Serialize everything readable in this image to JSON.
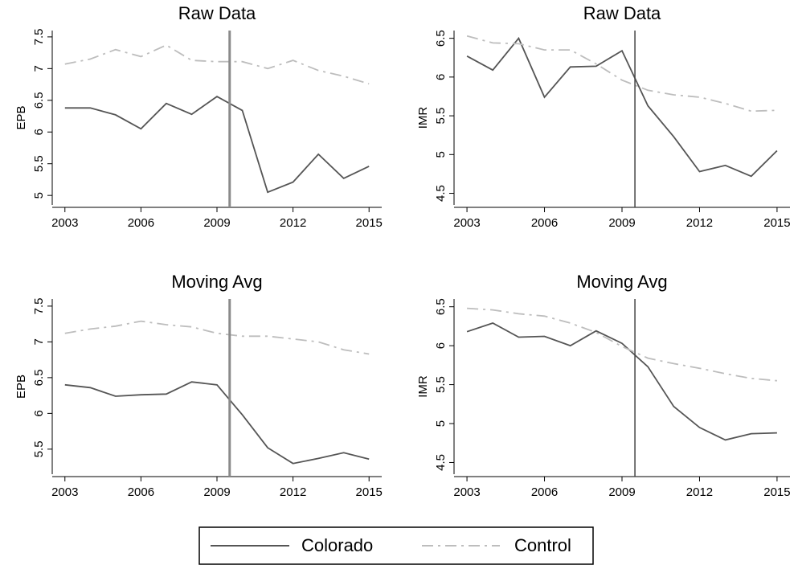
{
  "chart_data": [
    {
      "type": "line",
      "title": "Raw Data",
      "ylabel": "EPB",
      "x": [
        2003,
        2004,
        2005,
        2006,
        2007,
        2008,
        2009,
        2010,
        2011,
        2012,
        2013,
        2014,
        2015
      ],
      "xlim": [
        2002.5,
        2015.5
      ],
      "xticks": [
        2003,
        2006,
        2009,
        2012,
        2015
      ],
      "ylim": [
        4.85,
        7.6
      ],
      "yticks": [
        5,
        5.5,
        6,
        6.5,
        7,
        7.5
      ],
      "vline": 2009.5,
      "vline_color": "#8a8a8a",
      "series": [
        {
          "name": "Colorado",
          "color": "#555555",
          "dash": "solid",
          "values": [
            6.38,
            6.38,
            6.27,
            6.05,
            6.45,
            6.28,
            6.56,
            6.34,
            5.05,
            5.21,
            5.65,
            5.27,
            5.46
          ]
        },
        {
          "name": "Control",
          "color": "#bdbdbd",
          "dash": "dashdot",
          "values": [
            7.07,
            7.15,
            7.3,
            7.19,
            7.37,
            7.13,
            7.11,
            7.11,
            7.0,
            7.13,
            6.97,
            6.88,
            6.76
          ]
        }
      ]
    },
    {
      "type": "line",
      "title": "Raw Data",
      "ylabel": "IMR",
      "x": [
        2003,
        2004,
        2005,
        2006,
        2007,
        2008,
        2009,
        2010,
        2011,
        2012,
        2013,
        2014,
        2015
      ],
      "xlim": [
        2002.5,
        2015.5
      ],
      "xticks": [
        2003,
        2006,
        2009,
        2012,
        2015
      ],
      "ylim": [
        4.35,
        6.6
      ],
      "yticks": [
        4.5,
        5,
        5.5,
        6,
        6.5
      ],
      "vline": 2009.5,
      "vline_color": "#444444",
      "series": [
        {
          "color": "#555555",
          "dash": "solid",
          "values": [
            6.27,
            6.09,
            6.5,
            5.74,
            6.13,
            6.14,
            6.34,
            5.63,
            5.23,
            4.78,
            4.86,
            4.72,
            5.05
          ]
        },
        {
          "color": "#bdbdbd",
          "dash": "dashdot",
          "values": [
            6.53,
            6.44,
            6.43,
            6.35,
            6.35,
            6.17,
            5.96,
            5.83,
            5.77,
            5.74,
            5.66,
            5.56,
            5.57
          ]
        }
      ]
    },
    {
      "type": "line",
      "title": "Moving Avg",
      "ylabel": "EPB",
      "x": [
        2003,
        2004,
        2005,
        2006,
        2007,
        2008,
        2009,
        2010,
        2011,
        2012,
        2013,
        2014,
        2015
      ],
      "xlim": [
        2002.5,
        2015.5
      ],
      "xticks": [
        2003,
        2006,
        2009,
        2012,
        2015
      ],
      "ylim": [
        5.15,
        7.6
      ],
      "yticks": [
        5.5,
        6,
        6.5,
        7,
        7.5
      ],
      "vline": 2009.5,
      "vline_color": "#8a8a8a",
      "series": [
        {
          "color": "#555555",
          "dash": "solid",
          "values": [
            6.4,
            6.36,
            6.24,
            6.26,
            6.27,
            6.44,
            6.4,
            5.98,
            5.52,
            5.3,
            5.37,
            5.45,
            5.36
          ]
        },
        {
          "color": "#bdbdbd",
          "dash": "dashdot",
          "values": [
            7.12,
            7.18,
            7.22,
            7.29,
            7.24,
            7.21,
            7.12,
            7.08,
            7.08,
            7.04,
            7.0,
            6.89,
            6.83
          ]
        }
      ]
    },
    {
      "type": "line",
      "title": "Moving Avg",
      "ylabel": "IMR",
      "x": [
        2003,
        2004,
        2005,
        2006,
        2007,
        2008,
        2009,
        2010,
        2011,
        2012,
        2013,
        2014,
        2015
      ],
      "xlim": [
        2002.5,
        2015.5
      ],
      "xticks": [
        2003,
        2006,
        2009,
        2012,
        2015
      ],
      "ylim": [
        4.35,
        6.6
      ],
      "yticks": [
        4.5,
        5,
        5.5,
        6,
        6.5
      ],
      "vline": 2009.5,
      "vline_color": "#444444",
      "series": [
        {
          "color": "#555555",
          "dash": "solid",
          "values": [
            6.18,
            6.29,
            6.11,
            6.12,
            6.0,
            6.19,
            6.03,
            5.73,
            5.22,
            4.95,
            4.79,
            4.87,
            4.88
          ]
        },
        {
          "color": "#bdbdbd",
          "dash": "dashdot",
          "values": [
            6.48,
            6.46,
            6.41,
            6.38,
            6.29,
            6.17,
            5.99,
            5.84,
            5.77,
            5.71,
            5.64,
            5.58,
            5.55
          ]
        }
      ]
    }
  ]
}
